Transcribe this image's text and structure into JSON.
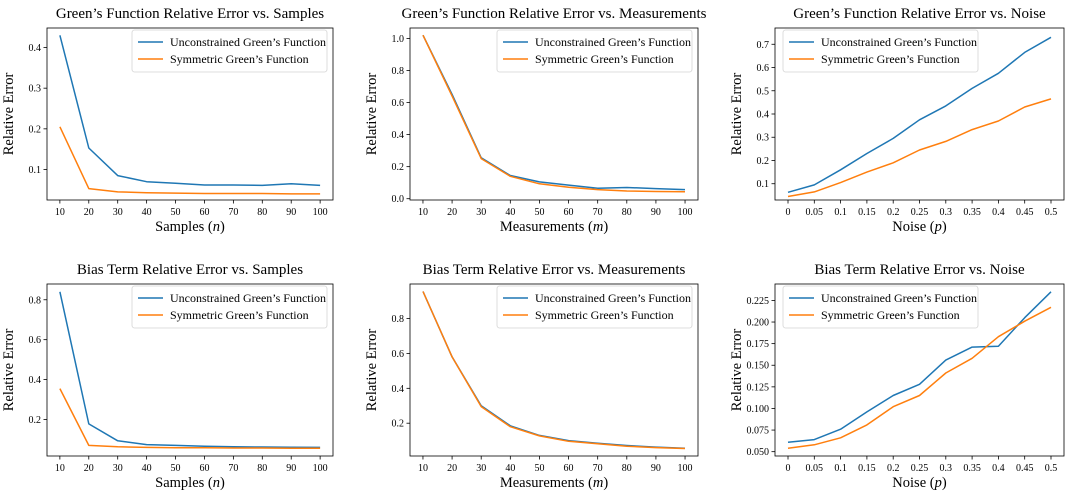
{
  "chart_data": [
    {
      "type": "line",
      "title": "Green’s Function Relative Error vs. Samples",
      "xlabel_text": "Samples (",
      "xlabel_var": "n",
      "xlabel_close": ")",
      "ylabel": "Relative Error",
      "x": [
        10,
        20,
        30,
        40,
        50,
        60,
        70,
        80,
        90,
        100
      ],
      "x_ticks": [
        "10",
        "20",
        "30",
        "40",
        "50",
        "60",
        "70",
        "80",
        "90",
        "100"
      ],
      "ylim": [
        0.025,
        0.448
      ],
      "y_ticks": [
        0.1,
        0.2,
        0.3,
        0.4
      ],
      "y_tick_labels": [
        "0.1",
        "0.2",
        "0.3",
        "0.4"
      ],
      "legend_position": "top-right",
      "series": [
        {
          "name": "Unconstrained Green’s Function",
          "color": "#1f77b4",
          "values": [
            0.43,
            0.153,
            0.085,
            0.07,
            0.066,
            0.062,
            0.062,
            0.061,
            0.065,
            0.061
          ]
        },
        {
          "name": "Symmetric Green’s Function",
          "color": "#ff7f0e",
          "values": [
            0.205,
            0.053,
            0.045,
            0.043,
            0.042,
            0.041,
            0.041,
            0.041,
            0.04,
            0.04
          ]
        }
      ]
    },
    {
      "type": "line",
      "title": "Green’s Function Relative Error vs. Measurements",
      "xlabel_text": "Measurements (",
      "xlabel_var": "m",
      "xlabel_close": ")",
      "ylabel": "Relative Error",
      "x": [
        10,
        20,
        30,
        40,
        50,
        60,
        70,
        80,
        90,
        100
      ],
      "x_ticks": [
        "10",
        "20",
        "30",
        "40",
        "50",
        "60",
        "70",
        "80",
        "90",
        "100"
      ],
      "ylim": [
        -0.008,
        1.065
      ],
      "y_ticks": [
        0.0,
        0.2,
        0.4,
        0.6,
        0.8,
        1.0
      ],
      "y_tick_labels": [
        "0.0",
        "0.2",
        "0.4",
        "0.6",
        "0.8",
        "1.0"
      ],
      "legend_position": "top-right",
      "series": [
        {
          "name": "Unconstrained Green’s Function",
          "color": "#1f77b4",
          "values": [
            1.02,
            0.65,
            0.255,
            0.145,
            0.105,
            0.085,
            0.065,
            0.07,
            0.063,
            0.057
          ]
        },
        {
          "name": "Symmetric Green’s Function",
          "color": "#ff7f0e",
          "values": [
            1.02,
            0.64,
            0.25,
            0.14,
            0.093,
            0.072,
            0.057,
            0.048,
            0.045,
            0.043
          ]
        }
      ]
    },
    {
      "type": "line",
      "title": "Green’s Function Relative Error vs. Noise",
      "xlabel_text": "Noise (",
      "xlabel_var": "p",
      "xlabel_close": ")",
      "ylabel": "Relative Error",
      "x": [
        0,
        0.05,
        0.1,
        0.15,
        0.2,
        0.25,
        0.3,
        0.35,
        0.4,
        0.45,
        0.5
      ],
      "x_ticks": [
        "0",
        "0.05",
        "0.1",
        "0.15",
        "0.2",
        "0.25",
        "0.3",
        "0.35",
        "0.4",
        "0.45",
        "0.5"
      ],
      "ylim": [
        0.03,
        0.77
      ],
      "y_ticks": [
        0.1,
        0.2,
        0.3,
        0.4,
        0.5,
        0.6,
        0.7
      ],
      "y_tick_labels": [
        "0.1",
        "0.2",
        "0.3",
        "0.4",
        "0.5",
        "0.6",
        "0.7"
      ],
      "legend_position": "top-left",
      "series": [
        {
          "name": "Unconstrained Green’s Function",
          "color": "#1f77b4",
          "values": [
            0.063,
            0.095,
            0.16,
            0.23,
            0.295,
            0.375,
            0.435,
            0.51,
            0.575,
            0.665,
            0.73
          ]
        },
        {
          "name": "Symmetric Green’s Function",
          "color": "#ff7f0e",
          "values": [
            0.045,
            0.065,
            0.105,
            0.15,
            0.19,
            0.245,
            0.282,
            0.333,
            0.37,
            0.43,
            0.465
          ]
        }
      ]
    },
    {
      "type": "line",
      "title": "Bias Term Relative Error vs. Samples",
      "xlabel_text": "Samples (",
      "xlabel_var": "n",
      "xlabel_close": ")",
      "ylabel": "Relative Error",
      "x": [
        10,
        20,
        30,
        40,
        50,
        60,
        70,
        80,
        90,
        100
      ],
      "x_ticks": [
        "10",
        "20",
        "30",
        "40",
        "50",
        "60",
        "70",
        "80",
        "90",
        "100"
      ],
      "ylim": [
        0.017,
        0.879
      ],
      "y_ticks": [
        0.2,
        0.4,
        0.6,
        0.8
      ],
      "y_tick_labels": [
        "0.2",
        "0.4",
        "0.6",
        "0.8"
      ],
      "legend_position": "top-right",
      "series": [
        {
          "name": "Unconstrained Green’s Function",
          "color": "#1f77b4",
          "values": [
            0.84,
            0.178,
            0.093,
            0.074,
            0.07,
            0.066,
            0.063,
            0.062,
            0.061,
            0.06
          ]
        },
        {
          "name": "Symmetric Green’s Function",
          "color": "#ff7f0e",
          "values": [
            0.355,
            0.07,
            0.063,
            0.06,
            0.058,
            0.058,
            0.057,
            0.057,
            0.056,
            0.056
          ]
        }
      ]
    },
    {
      "type": "line",
      "title": "Bias Term Relative Error vs. Measurements",
      "xlabel_text": "Measurements (",
      "xlabel_var": "m",
      "xlabel_close": ")",
      "ylabel": "Relative Error",
      "x": [
        10,
        20,
        30,
        40,
        50,
        60,
        70,
        80,
        90,
        100
      ],
      "x_ticks": [
        "10",
        "20",
        "30",
        "40",
        "50",
        "60",
        "70",
        "80",
        "90",
        "100"
      ],
      "ylim": [
        0.012,
        0.998
      ],
      "y_ticks": [
        0.2,
        0.4,
        0.6,
        0.8
      ],
      "y_tick_labels": [
        "0.2",
        "0.4",
        "0.6",
        "0.8"
      ],
      "legend_position": "top-right",
      "series": [
        {
          "name": "Unconstrained Green’s Function",
          "color": "#1f77b4",
          "values": [
            0.955,
            0.58,
            0.3,
            0.185,
            0.13,
            0.1,
            0.085,
            0.072,
            0.063,
            0.056
          ]
        },
        {
          "name": "Symmetric Green’s Function",
          "color": "#ff7f0e",
          "values": [
            0.955,
            0.58,
            0.295,
            0.18,
            0.127,
            0.096,
            0.082,
            0.068,
            0.06,
            0.055
          ]
        }
      ]
    },
    {
      "type": "line",
      "title": "Bias Term Relative Error vs. Noise",
      "xlabel_text": "Noise (",
      "xlabel_var": "p",
      "xlabel_close": ")",
      "ylabel": "Relative Error",
      "x": [
        0,
        0.05,
        0.1,
        0.15,
        0.2,
        0.25,
        0.3,
        0.35,
        0.4,
        0.45,
        0.5
      ],
      "x_ticks": [
        "0",
        "0.05",
        "0.1",
        "0.15",
        "0.2",
        "0.25",
        "0.3",
        "0.35",
        "0.4",
        "0.45",
        "0.5"
      ],
      "ylim": [
        0.045,
        0.244
      ],
      "y_ticks": [
        0.05,
        0.075,
        0.1,
        0.125,
        0.15,
        0.175,
        0.2,
        0.225
      ],
      "y_tick_labels": [
        "0.050",
        "0.075",
        "0.100",
        "0.125",
        "0.150",
        "0.175",
        "0.200",
        "0.225"
      ],
      "legend_position": "top-left",
      "series": [
        {
          "name": "Unconstrained Green’s Function",
          "color": "#1f77b4",
          "values": [
            0.061,
            0.064,
            0.076,
            0.096,
            0.115,
            0.128,
            0.156,
            0.171,
            0.172,
            0.205,
            0.235
          ]
        },
        {
          "name": "Symmetric Green’s Function",
          "color": "#ff7f0e",
          "values": [
            0.054,
            0.058,
            0.066,
            0.081,
            0.102,
            0.115,
            0.141,
            0.158,
            0.183,
            0.201,
            0.217
          ]
        }
      ]
    }
  ]
}
